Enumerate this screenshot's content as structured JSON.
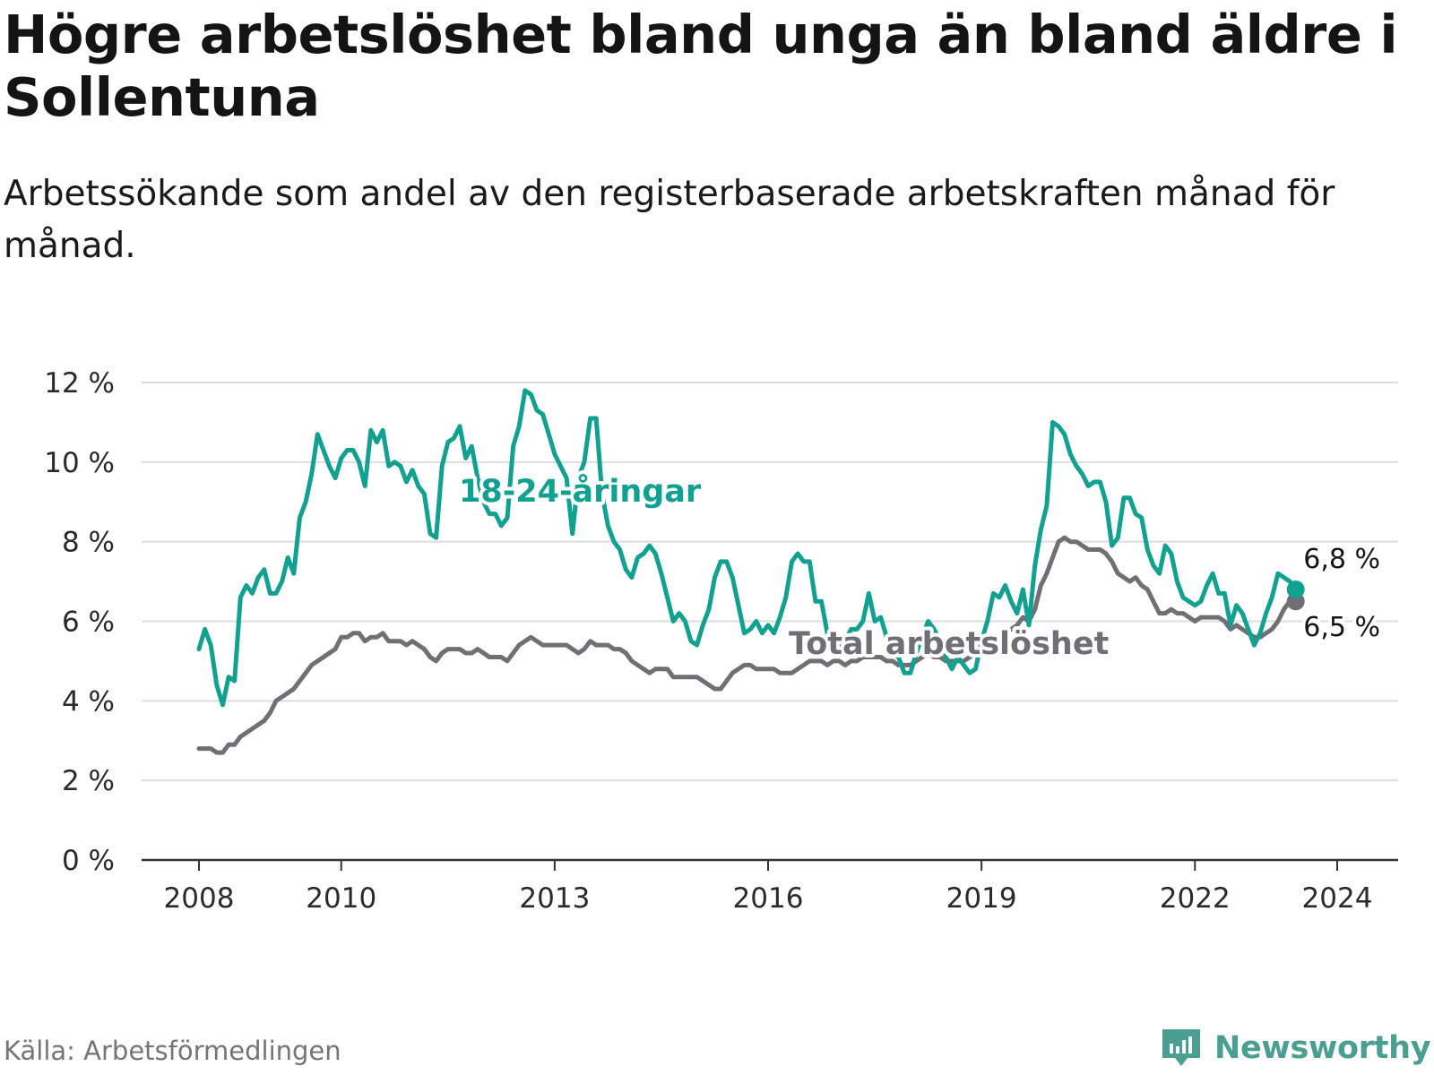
{
  "title": "Högre arbetslöshet bland unga än bland äldre i Sollentuna",
  "subtitle": "Arbetssökande som andel av den registerbaserade arbetskraften månad för månad.",
  "source": "Källa: Arbetsförmedlingen",
  "brand": "Newsworthy",
  "colors": {
    "youth": "#12a190",
    "total": "#6f6f75",
    "grid": "#dddddd",
    "axis": "#333333",
    "brand": "#4a9e92"
  },
  "chart_data": {
    "type": "line",
    "title": "Högre arbetslöshet bland unga än bland äldre i Sollentuna",
    "xlabel": "",
    "ylabel": "",
    "ylim": [
      0,
      12
    ],
    "xlim": [
      2007.6,
      2025.4
    ],
    "grid": true,
    "y_ticks": [
      0,
      2,
      4,
      6,
      8,
      10,
      12
    ],
    "y_tick_labels": [
      "0 %",
      "2 %",
      "4 %",
      "6 %",
      "8 %",
      "10 %",
      "12 %"
    ],
    "x_ticks": [
      2008,
      2010,
      2013,
      2016,
      2019,
      2022,
      2024
    ],
    "x_tick_labels": [
      "2008",
      "2010",
      "2013",
      "2016",
      "2019",
      "2022",
      "2024"
    ],
    "series": [
      {
        "name": "18-24-åringar",
        "label": "18-24-åringar",
        "end_label": "6,8 %",
        "x_start": 2008.0,
        "x_step_months": 1,
        "values": [
          5.3,
          5.8,
          5.4,
          4.4,
          3.9,
          4.6,
          4.5,
          6.6,
          6.9,
          6.7,
          7.1,
          7.3,
          6.7,
          6.7,
          7.0,
          7.6,
          7.2,
          8.6,
          9.0,
          9.7,
          10.7,
          10.3,
          9.9,
          9.6,
          10.1,
          10.3,
          10.3,
          10.0,
          9.4,
          10.8,
          10.5,
          10.8,
          9.9,
          10.0,
          9.9,
          9.5,
          9.8,
          9.4,
          9.2,
          8.2,
          8.1,
          9.9,
          10.5,
          10.6,
          10.9,
          10.1,
          10.4,
          9.6,
          9.0,
          8.7,
          8.7,
          8.4,
          8.6,
          10.4,
          10.9,
          11.8,
          11.7,
          11.3,
          11.2,
          10.7,
          10.2,
          9.9,
          9.6,
          8.2,
          9.6,
          10.0,
          11.1,
          11.1,
          9.2,
          8.4,
          8.0,
          7.8,
          7.3,
          7.1,
          7.6,
          7.7,
          7.9,
          7.7,
          7.2,
          6.6,
          6.0,
          6.2,
          6.0,
          5.5,
          5.4,
          5.9,
          6.3,
          7.1,
          7.5,
          7.5,
          7.1,
          6.4,
          5.7,
          5.8,
          6.0,
          5.7,
          5.9,
          5.7,
          6.1,
          6.6,
          7.5,
          7.7,
          7.5,
          7.5,
          6.5,
          6.5,
          5.7,
          5.2,
          5.3,
          5.5,
          5.8,
          5.8,
          6.0,
          6.7,
          6.0,
          6.1,
          5.6,
          5.2,
          5.1,
          4.7,
          4.7,
          5.2,
          5.6,
          6.0,
          5.8,
          5.5,
          5.1,
          4.8,
          5.1,
          4.9,
          4.7,
          4.8,
          5.5,
          6.0,
          6.7,
          6.6,
          6.9,
          6.5,
          6.2,
          6.8,
          5.9,
          7.4,
          8.3,
          8.9,
          11.0,
          10.9,
          10.7,
          10.2,
          9.9,
          9.7,
          9.4,
          9.5,
          9.5,
          9.0,
          7.9,
          8.1,
          9.1,
          9.1,
          8.7,
          8.6,
          7.8,
          7.4,
          7.2,
          7.9,
          7.7,
          7.0,
          6.6,
          6.5,
          6.4,
          6.5,
          6.9,
          7.2,
          6.7,
          6.7,
          5.9,
          6.4,
          6.2,
          5.8,
          5.4,
          5.7,
          6.2,
          6.6,
          7.2,
          7.1,
          7.0,
          6.8
        ]
      },
      {
        "name": "Total arbetslöshet",
        "label": "Total arbetslöshet",
        "end_label": "6,5 %",
        "x_start": 2008.0,
        "x_step_months": 1,
        "values": [
          2.8,
          2.8,
          2.8,
          2.7,
          2.7,
          2.9,
          2.9,
          3.1,
          3.2,
          3.3,
          3.4,
          3.5,
          3.7,
          4.0,
          4.1,
          4.2,
          4.3,
          4.5,
          4.7,
          4.9,
          5.0,
          5.1,
          5.2,
          5.3,
          5.6,
          5.6,
          5.7,
          5.7,
          5.5,
          5.6,
          5.6,
          5.7,
          5.5,
          5.5,
          5.5,
          5.4,
          5.5,
          5.4,
          5.3,
          5.1,
          5.0,
          5.2,
          5.3,
          5.3,
          5.3,
          5.2,
          5.2,
          5.3,
          5.2,
          5.1,
          5.1,
          5.1,
          5.0,
          5.2,
          5.4,
          5.5,
          5.6,
          5.5,
          5.4,
          5.4,
          5.4,
          5.4,
          5.4,
          5.3,
          5.2,
          5.3,
          5.5,
          5.4,
          5.4,
          5.4,
          5.3,
          5.3,
          5.2,
          5.0,
          4.9,
          4.8,
          4.7,
          4.8,
          4.8,
          4.8,
          4.6,
          4.6,
          4.6,
          4.6,
          4.6,
          4.5,
          4.4,
          4.3,
          4.3,
          4.5,
          4.7,
          4.8,
          4.9,
          4.9,
          4.8,
          4.8,
          4.8,
          4.8,
          4.7,
          4.7,
          4.7,
          4.8,
          4.9,
          5.0,
          5.0,
          5.0,
          4.9,
          5.0,
          5.0,
          4.9,
          5.0,
          5.0,
          5.1,
          5.1,
          5.1,
          5.1,
          5.0,
          5.0,
          4.9,
          4.9,
          4.9,
          5.0,
          5.1,
          5.2,
          5.1,
          5.1,
          5.0,
          5.0,
          5.0,
          5.0,
          5.1,
          5.2,
          5.3,
          5.4,
          5.5,
          5.6,
          5.7,
          5.8,
          5.9,
          6.1,
          6.0,
          6.3,
          6.9,
          7.2,
          7.6,
          8.0,
          8.1,
          8.0,
          8.0,
          7.9,
          7.8,
          7.8,
          7.8,
          7.7,
          7.5,
          7.2,
          7.1,
          7.0,
          7.1,
          6.9,
          6.8,
          6.5,
          6.2,
          6.2,
          6.3,
          6.2,
          6.2,
          6.1,
          6.0,
          6.1,
          6.1,
          6.1,
          6.1,
          6.0,
          5.8,
          5.9,
          5.8,
          5.7,
          5.6,
          5.6,
          5.7,
          5.8,
          6.0,
          6.3,
          6.5,
          6.5
        ]
      }
    ]
  }
}
